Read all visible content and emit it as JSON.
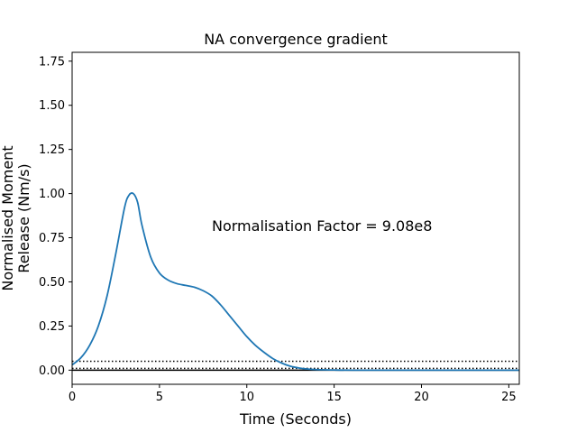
{
  "chart_data": {
    "type": "line",
    "title": "NA convergence gradient",
    "xlabel": "Time (Seconds)",
    "ylabel": [
      "Normalised Moment",
      "Release (Nm/s)"
    ],
    "xlim": [
      0,
      25.6
    ],
    "ylim": [
      -0.08,
      1.8
    ],
    "xticks": [
      0,
      5,
      10,
      15,
      20,
      25
    ],
    "xtick_labels": [
      "0",
      "5",
      "10",
      "15",
      "20",
      "25"
    ],
    "yticks": [
      0.0,
      0.25,
      0.5,
      0.75,
      1.0,
      1.25,
      1.5,
      1.75
    ],
    "ytick_labels": [
      "0.00",
      "0.25",
      "0.50",
      "0.75",
      "1.00",
      "1.25",
      "1.50",
      "1.75"
    ],
    "grid": false,
    "annotation": {
      "text": "Normalisation Factor = 9.08e8",
      "x": 8.0,
      "y": 0.82
    },
    "series": [
      {
        "color": "#1f77b4",
        "x": [
          0,
          0.5,
          1,
          1.5,
          2,
          2.5,
          3,
          3.25,
          3.5,
          3.75,
          4,
          4.5,
          5,
          5.5,
          6,
          6.5,
          7,
          7.5,
          8,
          8.5,
          9,
          9.5,
          10,
          10.5,
          11,
          11.5,
          12,
          12.5,
          13,
          13.5,
          14,
          15,
          16,
          18,
          20,
          22,
          24,
          25.6
        ],
        "y": [
          0.03,
          0.07,
          0.14,
          0.25,
          0.42,
          0.66,
          0.92,
          0.99,
          1.0,
          0.95,
          0.82,
          0.64,
          0.55,
          0.51,
          0.49,
          0.48,
          0.47,
          0.45,
          0.42,
          0.37,
          0.31,
          0.25,
          0.19,
          0.14,
          0.1,
          0.065,
          0.04,
          0.022,
          0.012,
          0.006,
          0.003,
          0.001,
          0.0,
          0.0,
          0.0,
          0.0,
          0.0,
          0.0
        ]
      }
    ],
    "hlines": [
      {
        "y": 0.05,
        "style": "dotted",
        "color": "#000000"
      },
      {
        "y": 0.01,
        "style": "dotted",
        "color": "#000000"
      },
      {
        "y": 0.0,
        "style": "solid",
        "color": "#000000"
      }
    ]
  }
}
